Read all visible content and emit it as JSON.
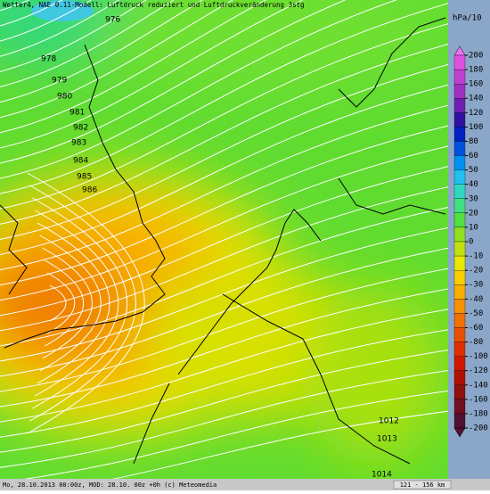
{
  "header": {
    "title": "Wetter4, NAE 0.11-Modell: Luftdruck reduziert und Luftdruckveränderung 3stg"
  },
  "isobar_labels": [
    "976",
    "978",
    "979",
    "980",
    "981",
    "982",
    "983",
    "984",
    "985",
    "986",
    "1012",
    "1013",
    "1014"
  ],
  "legend": {
    "unit": "hPa/10",
    "items": [
      {
        "label": 200,
        "color": "#f070f0"
      },
      {
        "label": 180,
        "color": "#e050e0"
      },
      {
        "label": 160,
        "color": "#c040d0"
      },
      {
        "label": 140,
        "color": "#a030c0"
      },
      {
        "label": 120,
        "color": "#7020b0"
      },
      {
        "label": 100,
        "color": "#3010a0"
      },
      {
        "label": 80,
        "color": "#0020c0"
      },
      {
        "label": 60,
        "color": "#0050e0"
      },
      {
        "label": 50,
        "color": "#0090f0"
      },
      {
        "label": 40,
        "color": "#20c0f0"
      },
      {
        "label": 30,
        "color": "#30d8c0"
      },
      {
        "label": 20,
        "color": "#40e080"
      },
      {
        "label": 10,
        "color": "#50e040"
      },
      {
        "label": 0,
        "color": "#90e020"
      },
      {
        "label": -10,
        "color": "#c0e010"
      },
      {
        "label": -20,
        "color": "#e8e800"
      },
      {
        "label": -30,
        "color": "#f8d000"
      },
      {
        "label": -40,
        "color": "#f8b000"
      },
      {
        "label": -50,
        "color": "#f89000"
      },
      {
        "label": -60,
        "color": "#f07000"
      },
      {
        "label": -80,
        "color": "#e85000"
      },
      {
        "label": -100,
        "color": "#e03000"
      },
      {
        "label": -120,
        "color": "#d01800"
      },
      {
        "label": -140,
        "color": "#b01000"
      },
      {
        "label": -160,
        "color": "#901010"
      },
      {
        "label": -180,
        "color": "#701020"
      },
      {
        "label": -200,
        "color": "#501030"
      }
    ]
  },
  "footer": {
    "text": "Mo, 28.10.2013 00:00z, MOD: 28.10. 00z +0h (c) Meteomedia",
    "scale": "121 - 156 km"
  }
}
